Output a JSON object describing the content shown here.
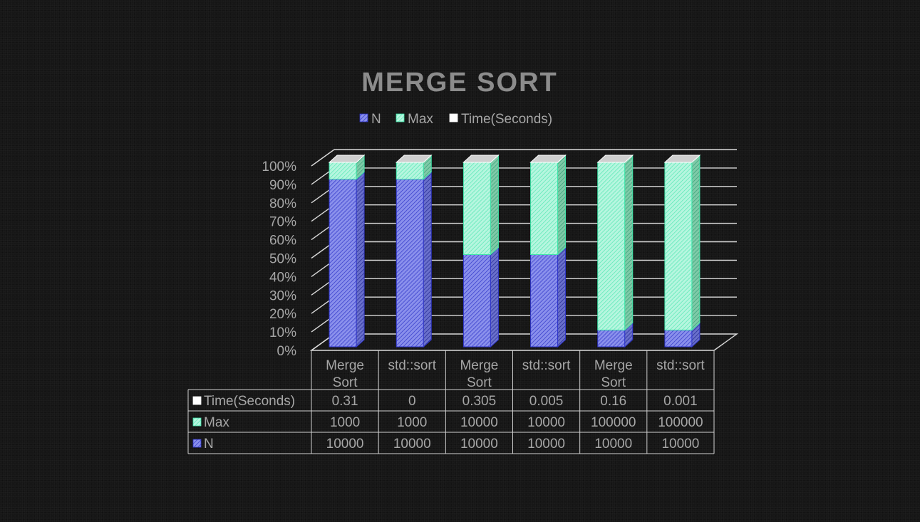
{
  "chart_data": {
    "type": "bar",
    "stacking": "percent",
    "view": "3d",
    "title": "MERGE SORT",
    "categories": [
      [
        "Merge",
        "Sort"
      ],
      [
        "std::sort"
      ],
      [
        "Merge",
        "Sort"
      ],
      [
        "std::sort"
      ],
      [
        "Merge",
        "Sort"
      ],
      [
        "std::sort"
      ]
    ],
    "series": [
      {
        "name": "N",
        "values": [
          10000,
          10000,
          10000,
          10000,
          10000,
          10000
        ],
        "color": "#7f86e6",
        "edge": "#2f35c8",
        "pattern": "hatch-blue"
      },
      {
        "name": "Max",
        "values": [
          1000,
          1000,
          10000,
          10000,
          100000,
          100000
        ],
        "color": "#a8f2d8",
        "edge": "#3fe3a8",
        "pattern": "hatch-green"
      },
      {
        "name": "Time(Seconds)",
        "values": [
          0.31,
          0,
          0.305,
          0.005,
          0.16,
          0.001
        ],
        "color": "#ffffff",
        "edge": "#ffffff",
        "pattern": "none"
      }
    ],
    "table_values": [
      [
        "0.31",
        "0",
        "0.305",
        "0.005",
        "0.16",
        "0.001"
      ],
      [
        "1000",
        "1000",
        "10000",
        "10000",
        "100000",
        "100000"
      ],
      [
        "10000",
        "10000",
        "10000",
        "10000",
        "10000",
        "10000"
      ]
    ],
    "table_row_order": [
      "Time(Seconds)",
      "Max",
      "N"
    ],
    "y_ticks": [
      "0%",
      "10%",
      "20%",
      "30%",
      "40%",
      "50%",
      "60%",
      "70%",
      "80%",
      "90%",
      "100%"
    ],
    "ylim": [
      0,
      100
    ],
    "grid": true,
    "legend": "top",
    "data_table": true,
    "colors": {
      "background": "#161616",
      "text": "#a6a6a6",
      "title": "#8c8c8c",
      "grid": "#d9d9d9",
      "top_face": "#cfcfcf"
    }
  }
}
